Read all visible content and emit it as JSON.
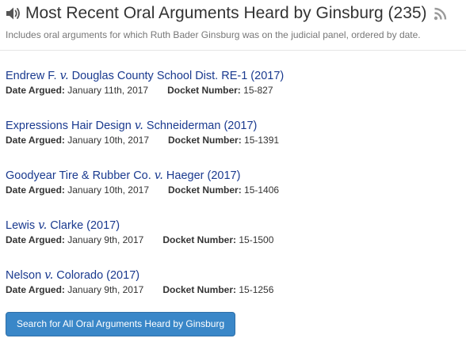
{
  "header": {
    "title": "Most Recent Oral Arguments Heard by Ginsburg (235)",
    "subtitle": "Includes oral arguments for which Ruth Bader Ginsburg was on the judicial panel, ordered by date.",
    "icons": [
      "speaker-icon",
      "rss-icon"
    ]
  },
  "labels": {
    "date_argued": "Date Argued:",
    "docket_number": "Docket Number:",
    "versus": "v."
  },
  "cases": [
    {
      "party1": "Endrew F.",
      "party2": "Douglas County School Dist. RE-1 (2017)",
      "date": "January 11th, 2017",
      "docket": "15-827"
    },
    {
      "party1": "Expressions Hair Design",
      "party2": "Schneiderman (2017)",
      "date": "January 10th, 2017",
      "docket": "15-1391"
    },
    {
      "party1": "Goodyear Tire & Rubber Co.",
      "party2": "Haeger (2017)",
      "date": "January 10th, 2017",
      "docket": "15-1406"
    },
    {
      "party1": "Lewis",
      "party2": "Clarke (2017)",
      "date": "January 9th, 2017",
      "docket": "15-1500"
    },
    {
      "party1": "Nelson",
      "party2": "Colorado (2017)",
      "date": "January 9th, 2017",
      "docket": "15-1256"
    }
  ],
  "search_button": {
    "label": "Search for All Oral Arguments Heard by Ginsburg"
  },
  "colors": {
    "link": "#1a3a8f",
    "button": "#3a87c8",
    "rss": "#9a9a9a",
    "speaker": "#555555"
  }
}
